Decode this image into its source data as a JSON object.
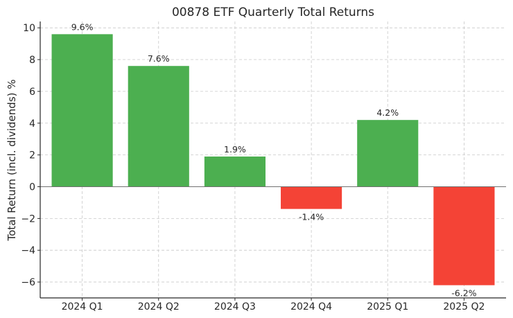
{
  "chart_data": {
    "type": "bar",
    "title": "00878 ETF Quarterly Total Returns",
    "xlabel": "",
    "ylabel": "Total Return (incl. dividends) %",
    "categories": [
      "2024 Q1",
      "2024 Q2",
      "2024 Q3",
      "2024 Q4",
      "2025 Q1",
      "2025 Q2"
    ],
    "values": [
      9.6,
      7.6,
      1.9,
      -1.4,
      4.2,
      -6.2
    ],
    "data_labels": [
      "9.6%",
      "7.6%",
      "1.9%",
      "-1.4%",
      "4.2%",
      "-6.2%"
    ],
    "ylim": [
      -7,
      10.4
    ],
    "yticks": [
      -6,
      -4,
      -2,
      0,
      2,
      4,
      6,
      8,
      10
    ],
    "ytick_labels": [
      "−6",
      "−4",
      "−2",
      "0",
      "2",
      "4",
      "6",
      "8",
      "10"
    ],
    "grid": true,
    "colors": {
      "positive": "#4caf50",
      "negative": "#f44336"
    }
  }
}
